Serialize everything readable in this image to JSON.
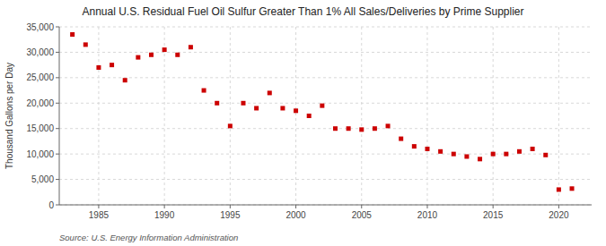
{
  "chart_data": {
    "type": "scatter",
    "title": "Annual U.S. Residual Fuel Oil Sulfur Greater Than 1% All Sales/Deliveries by Prime Supplier",
    "ylabel": "Thousand Gallons per Day",
    "source": "Source: U.S. Energy Information Administration",
    "x": [
      1983,
      1984,
      1985,
      1986,
      1987,
      1988,
      1989,
      1990,
      1991,
      1992,
      1993,
      1994,
      1995,
      1996,
      1997,
      1998,
      1999,
      2000,
      2001,
      2002,
      2003,
      2004,
      2005,
      2006,
      2007,
      2008,
      2009,
      2010,
      2011,
      2012,
      2013,
      2014,
      2015,
      2016,
      2017,
      2018,
      2019,
      2020,
      2021
    ],
    "values": [
      33500,
      31500,
      27000,
      27500,
      24500,
      29000,
      29500,
      30500,
      29500,
      31000,
      22500,
      20000,
      15500,
      20000,
      19000,
      22000,
      19000,
      18500,
      17500,
      19500,
      15000,
      15000,
      14800,
      15000,
      15500,
      13000,
      11500,
      11000,
      10500,
      10000,
      9500,
      9000,
      10000,
      10000,
      10500,
      11000,
      9800,
      3000,
      3200
    ],
    "color": "#cc0000",
    "marker": "square",
    "xlim": [
      1982,
      2022.5
    ],
    "ylim": [
      0,
      35000
    ],
    "xticks": [
      1985,
      1990,
      1995,
      2000,
      2005,
      2010,
      2015,
      2020
    ],
    "yticks": [
      0,
      {
        "value": 5000,
        "label": "5,000"
      },
      {
        "value": 10000,
        "label": "10,000"
      },
      {
        "value": 15000,
        "label": "15,000"
      },
      {
        "value": 20000,
        "label": "20,000"
      },
      {
        "value": 25000,
        "label": "25,000"
      },
      {
        "value": 30000,
        "label": "30,000"
      },
      {
        "value": 35000,
        "label": "35,000"
      }
    ],
    "grid": true
  }
}
